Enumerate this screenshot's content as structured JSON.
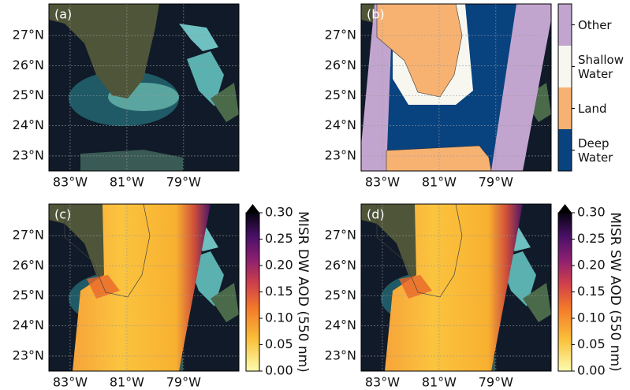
{
  "lon_lim": [
    -83.75,
    -77.05
  ],
  "lat_lim": [
    22.5,
    28.05
  ],
  "lat_ticks": [
    {
      "value": 23,
      "label": "23°N"
    },
    {
      "value": 24,
      "label": "24°N"
    },
    {
      "value": 25,
      "label": "25°N"
    },
    {
      "value": 26,
      "label": "26°N"
    },
    {
      "value": 27,
      "label": "27°N"
    }
  ],
  "lon_ticks": [
    {
      "value": -83,
      "label": "83°W"
    },
    {
      "value": -81,
      "label": "81°W"
    },
    {
      "value": -79,
      "label": "79°W"
    }
  ],
  "panels": [
    {
      "label": "(a)",
      "kind": "rgb"
    },
    {
      "label": "(b)",
      "kind": "class",
      "colorbar": {
        "categories": [
          {
            "name": "Other",
            "color": "#c2a5cf"
          },
          {
            "name": "Shallow Water",
            "color": "#f7f7f0"
          },
          {
            "name": "Land",
            "color": "#f7b272"
          },
          {
            "name": "Deep Water",
            "color": "#08427f"
          }
        ]
      }
    },
    {
      "label": "(c)",
      "kind": "aod",
      "colorbar": {
        "label": "MISR DW AOD (550 nm)",
        "lim": [
          0,
          0.3
        ],
        "ticks": [
          {
            "value": 0,
            "label": "0.00"
          },
          {
            "value": 0.05,
            "label": "0.05"
          },
          {
            "value": 0.1,
            "label": "0.10"
          },
          {
            "value": 0.15,
            "label": "0.15"
          },
          {
            "value": 0.2,
            "label": "0.20"
          },
          {
            "value": 0.25,
            "label": "0.25"
          },
          {
            "value": 0.3,
            "label": "0.30"
          }
        ]
      }
    },
    {
      "label": "(d)",
      "kind": "aod",
      "colorbar": {
        "label": "MISR SW AOD (550 nm)",
        "lim": [
          0,
          0.3
        ],
        "ticks": [
          {
            "value": 0,
            "label": "0.00"
          },
          {
            "value": 0.05,
            "label": "0.05"
          },
          {
            "value": 0.1,
            "label": "0.10"
          },
          {
            "value": 0.15,
            "label": "0.15"
          },
          {
            "value": 0.2,
            "label": "0.20"
          },
          {
            "value": 0.25,
            "label": "0.25"
          },
          {
            "value": 0.3,
            "label": "0.30"
          }
        ]
      }
    }
  ]
}
